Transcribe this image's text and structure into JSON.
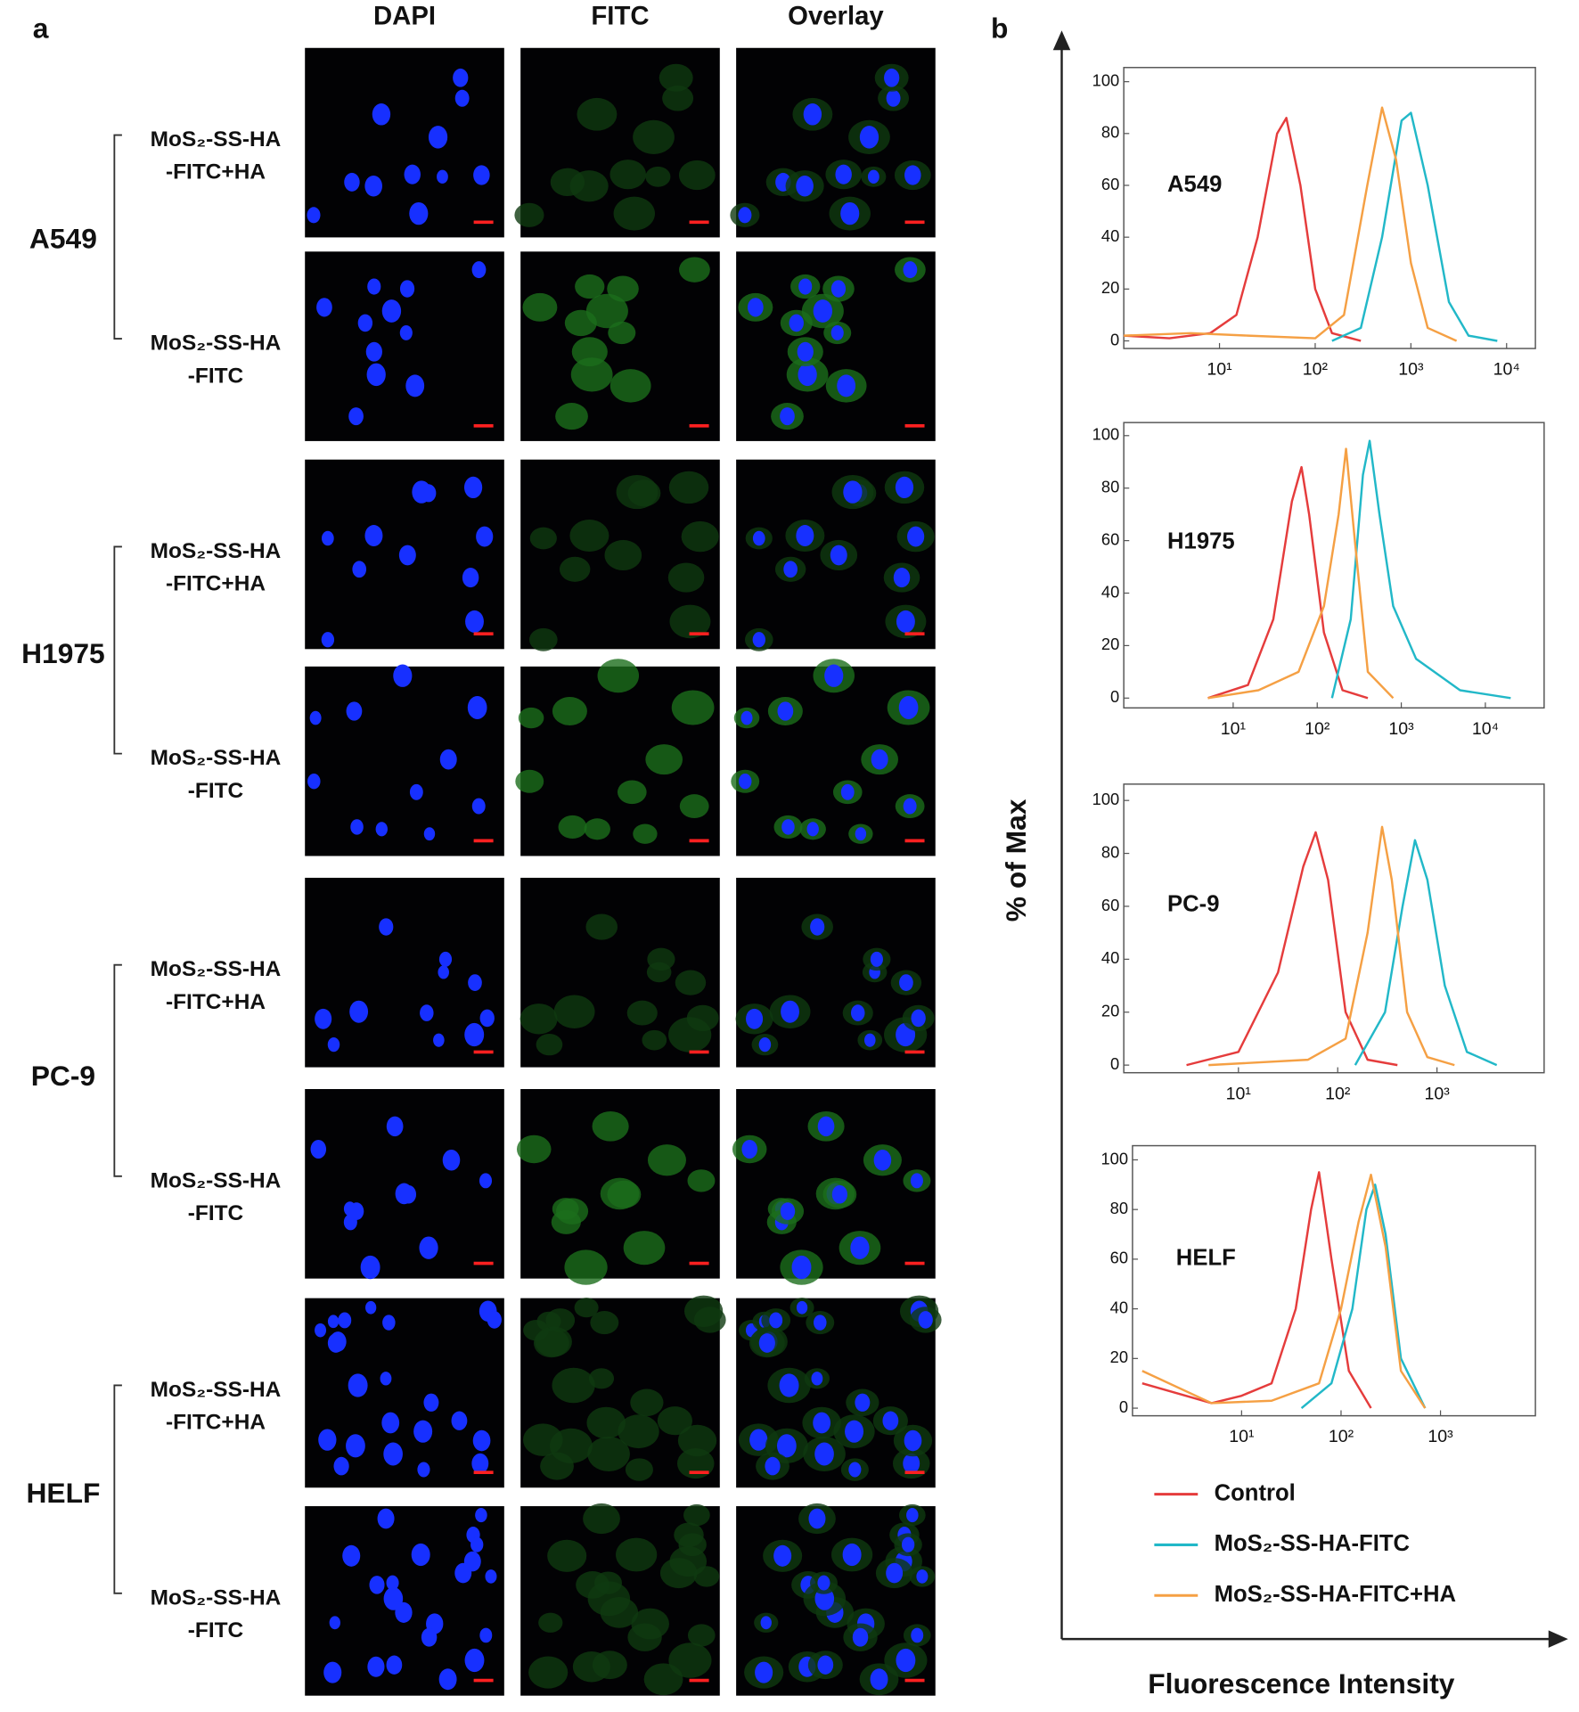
{
  "panel_a": {
    "label": "a",
    "columns": [
      "DAPI",
      "FITC",
      "Overlay"
    ],
    "groups": [
      {
        "cell_line": "A549",
        "conditions": [
          [
            "MoS₂-SS-HA",
            "-FITC+HA"
          ],
          [
            "MoS₂-SS-HA",
            "-FITC"
          ]
        ]
      },
      {
        "cell_line": "H1975",
        "conditions": [
          [
            "MoS₂-SS-HA",
            "-FITC+HA"
          ],
          [
            "MoS₂-SS-HA",
            "-FITC"
          ]
        ]
      },
      {
        "cell_line": "PC-9",
        "conditions": [
          [
            "MoS₂-SS-HA",
            "-FITC+HA"
          ],
          [
            "MoS₂-SS-HA",
            "-FITC"
          ]
        ]
      },
      {
        "cell_line": "HELF",
        "conditions": [
          [
            "MoS₂-SS-HA",
            "-FITC+HA"
          ],
          [
            "MoS₂-SS-HA",
            "-FITC"
          ]
        ]
      }
    ]
  },
  "panel_b": {
    "label": "b",
    "ylabel": "% of Max",
    "xlabel": "Fluorescence Intensity",
    "legend": [
      {
        "name": "Control",
        "color": "#e53c3c"
      },
      {
        "name": "MoS₂-SS-HA-FITC",
        "color": "#22b8c8"
      },
      {
        "name": "MoS₂-SS-HA-FITC+HA",
        "color": "#f5a044"
      }
    ]
  },
  "chart_data": [
    {
      "type": "line",
      "annotation": "A549",
      "xscale": "log",
      "xlim": [
        1,
        20000
      ],
      "xticks": [
        {
          "value": 10,
          "label": "10¹"
        },
        {
          "value": 100,
          "label": "10²"
        },
        {
          "value": 1000,
          "label": "10³"
        },
        {
          "value": 10000,
          "label": "10⁴"
        }
      ],
      "ylim": [
        0,
        100
      ],
      "yticks": [
        0,
        20,
        40,
        60,
        80,
        100
      ],
      "series": [
        {
          "color": "#e53c3c",
          "x": [
            1,
            3,
            8,
            15,
            25,
            40,
            50,
            70,
            100,
            150,
            300
          ],
          "values": [
            2,
            1,
            3,
            10,
            40,
            80,
            86,
            60,
            20,
            3,
            0
          ]
        },
        {
          "color": "#22b8c8",
          "x": [
            150,
            300,
            500,
            800,
            1000,
            1500,
            2500,
            4000,
            8000
          ],
          "values": [
            0,
            5,
            40,
            85,
            88,
            60,
            15,
            2,
            0
          ]
        },
        {
          "color": "#f5a044",
          "x": [
            1,
            5,
            20,
            100,
            200,
            350,
            500,
            700,
            1000,
            1500,
            3000
          ],
          "values": [
            2,
            3,
            2,
            1,
            10,
            60,
            90,
            70,
            30,
            5,
            0
          ]
        }
      ]
    },
    {
      "type": "line",
      "annotation": "H1975",
      "xscale": "log",
      "xlim": [
        0.5,
        50000
      ],
      "xticks": [
        {
          "value": 10,
          "label": "10¹"
        },
        {
          "value": 100,
          "label": "10²"
        },
        {
          "value": 1000,
          "label": "10³"
        },
        {
          "value": 10000,
          "label": "10⁴"
        }
      ],
      "ylim": [
        0,
        100
      ],
      "yticks": [
        0,
        20,
        40,
        60,
        80,
        100
      ],
      "series": [
        {
          "color": "#e53c3c",
          "x": [
            5,
            15,
            30,
            50,
            65,
            80,
            120,
            200,
            400
          ],
          "values": [
            0,
            5,
            30,
            75,
            88,
            70,
            25,
            3,
            0
          ]
        },
        {
          "color": "#22b8c8",
          "x": [
            150,
            250,
            350,
            420,
            550,
            800,
            1500,
            5000,
            20000
          ],
          "values": [
            0,
            30,
            85,
            98,
            70,
            35,
            15,
            3,
            0
          ]
        },
        {
          "color": "#f5a044",
          "x": [
            5,
            20,
            60,
            120,
            180,
            220,
            280,
            400,
            800
          ],
          "values": [
            0,
            3,
            10,
            35,
            70,
            95,
            60,
            10,
            0
          ]
        }
      ]
    },
    {
      "type": "line",
      "annotation": "PC-9",
      "xscale": "log",
      "xlim": [
        0.7,
        12000
      ],
      "xticks": [
        {
          "value": 10,
          "label": "10¹"
        },
        {
          "value": 100,
          "label": "10²"
        },
        {
          "value": 1000,
          "label": "10³"
        }
      ],
      "ylim": [
        0,
        100
      ],
      "yticks": [
        0,
        20,
        40,
        60,
        80,
        100
      ],
      "series": [
        {
          "color": "#e53c3c",
          "x": [
            3,
            10,
            25,
            45,
            60,
            80,
            120,
            200,
            400
          ],
          "values": [
            0,
            5,
            35,
            75,
            88,
            70,
            20,
            2,
            0
          ]
        },
        {
          "color": "#22b8c8",
          "x": [
            150,
            300,
            450,
            600,
            800,
            1200,
            2000,
            4000
          ],
          "values": [
            0,
            20,
            60,
            85,
            70,
            30,
            5,
            0
          ]
        },
        {
          "color": "#f5a044",
          "x": [
            5,
            50,
            120,
            200,
            280,
            350,
            500,
            800,
            1500
          ],
          "values": [
            0,
            2,
            10,
            50,
            90,
            70,
            20,
            3,
            0
          ]
        }
      ]
    },
    {
      "type": "line",
      "annotation": "HELF",
      "xscale": "log",
      "xlim": [
        0.8,
        9000
      ],
      "xticks": [
        {
          "value": 10,
          "label": "10¹"
        },
        {
          "value": 100,
          "label": "10²"
        },
        {
          "value": 1000,
          "label": "10³"
        }
      ],
      "ylim": [
        0,
        100
      ],
      "yticks": [
        0,
        20,
        40,
        60,
        80,
        100
      ],
      "series": [
        {
          "color": "#e53c3c",
          "x": [
            1,
            5,
            10,
            20,
            35,
            50,
            60,
            80,
            120,
            200
          ],
          "values": [
            10,
            2,
            5,
            10,
            40,
            80,
            95,
            60,
            15,
            0
          ]
        },
        {
          "color": "#22b8c8",
          "x": [
            40,
            80,
            130,
            180,
            220,
            280,
            400,
            700
          ],
          "values": [
            0,
            10,
            40,
            80,
            90,
            70,
            20,
            0
          ]
        },
        {
          "color": "#f5a044",
          "x": [
            1,
            5,
            20,
            60,
            100,
            150,
            200,
            280,
            400,
            700
          ],
          "values": [
            15,
            2,
            3,
            10,
            40,
            75,
            94,
            65,
            15,
            0
          ]
        }
      ]
    }
  ]
}
